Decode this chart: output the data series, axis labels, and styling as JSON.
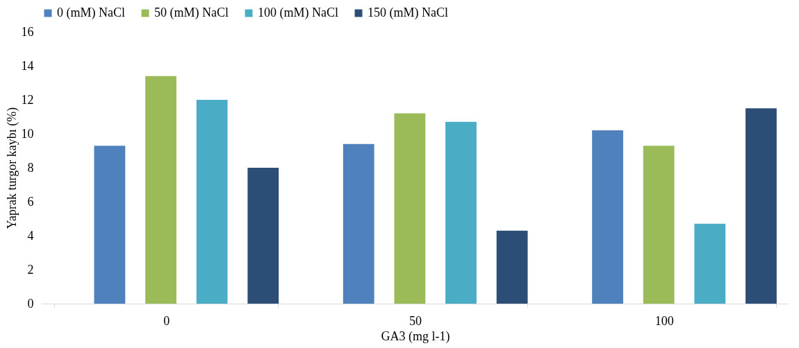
{
  "chart_data": {
    "type": "bar",
    "xlabel": "GA3 (mg l-1)",
    "ylabel": "Yaprak turgor kaybı (%)",
    "categories": [
      "0",
      "50",
      "100"
    ],
    "series": [
      {
        "name": "0 (mM) NaCl",
        "color": "#4f81bd",
        "values": [
          9.3,
          9.4,
          10.2
        ]
      },
      {
        "name": "50 (mM) NaCl",
        "color": "#9bbb59",
        "values": [
          13.4,
          11.2,
          9.3
        ]
      },
      {
        "name": "100 (mM) NaCl",
        "color": "#4bacc6",
        "values": [
          12.0,
          10.7,
          4.7
        ]
      },
      {
        "name": "150 (mM) NaCl",
        "color": "#2c4d75",
        "values": [
          8.0,
          4.3,
          11.5
        ]
      }
    ],
    "ylim": [
      0,
      16
    ],
    "yticks": [
      0,
      2,
      4,
      6,
      8,
      10,
      12,
      14,
      16
    ],
    "grid": false,
    "legend": "top"
  }
}
